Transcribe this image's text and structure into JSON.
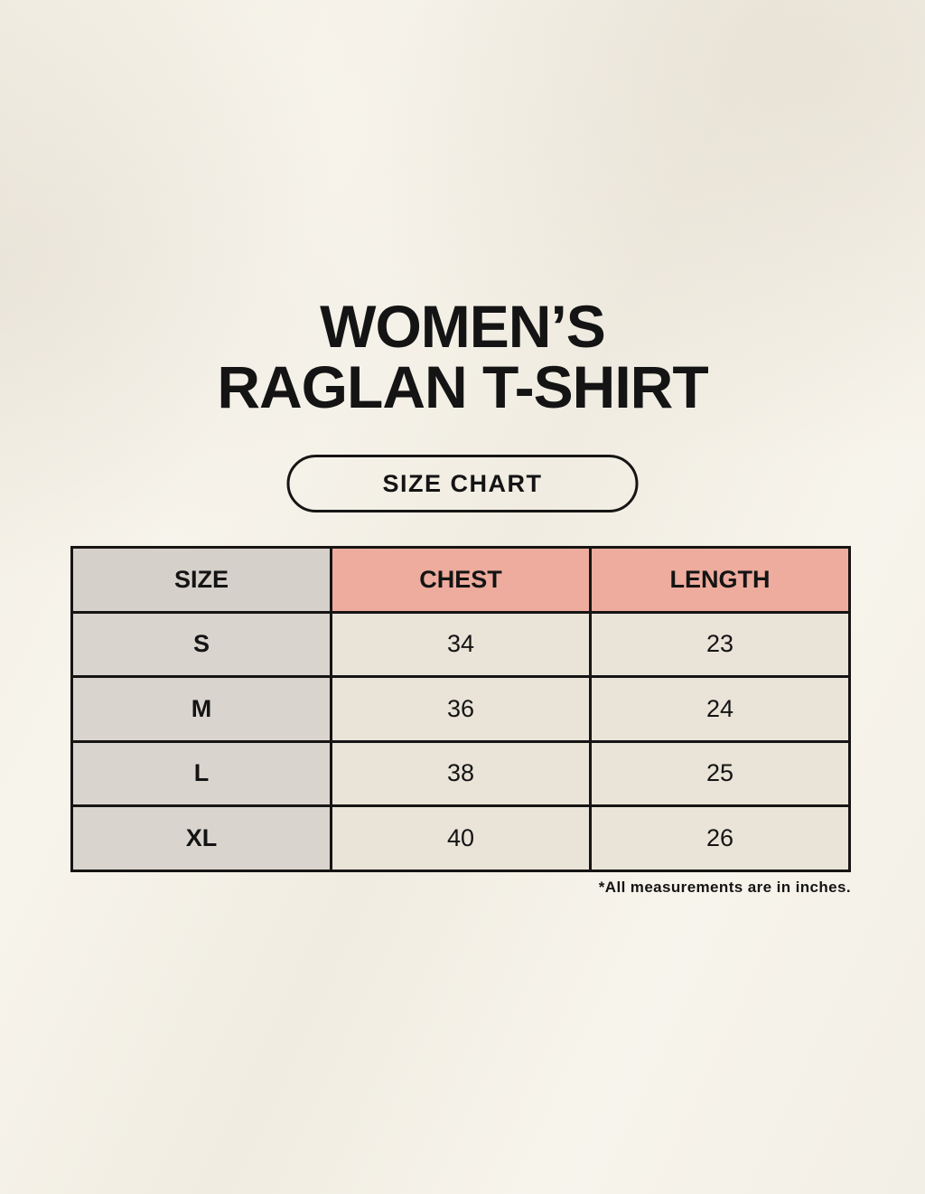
{
  "page": {
    "title_line1": "WOMEN’S",
    "title_line2": "RAGLAN T-SHIRT",
    "button_label": "SIZE CHART",
    "footnote": "*All measurements are in inches."
  },
  "chart_data": {
    "type": "table",
    "title": "WOMEN’S RAGLAN T-SHIRT — SIZE CHART",
    "columns": [
      "SIZE",
      "CHEST",
      "LENGTH"
    ],
    "rows": [
      [
        "S",
        "34",
        "23"
      ],
      [
        "M",
        "36",
        "24"
      ],
      [
        "L",
        "38",
        "25"
      ],
      [
        "XL",
        "40",
        "26"
      ]
    ],
    "units": "inches"
  },
  "colors": {
    "page-bg": "#f4f1e8",
    "header-accent": "#edac9d",
    "header-neutral": "#d6d0cb",
    "row-label-bg": "#dad4ce",
    "cell-bg": "#e9e3d8",
    "border": "#161514",
    "text": "#141414"
  }
}
